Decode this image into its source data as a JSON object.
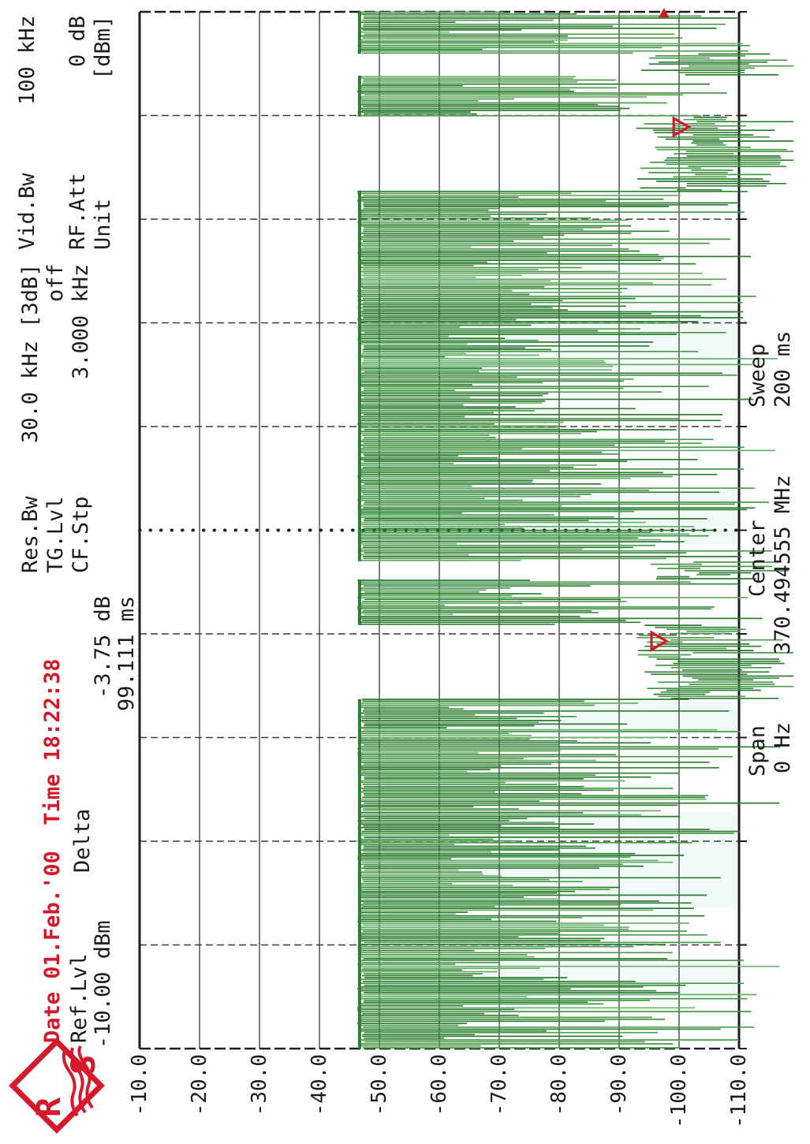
{
  "device": {
    "brand_logo": "rohde-schwarz",
    "date_line": "Date 01.Feb.'00  Time 18:22:38"
  },
  "header": {
    "ref_lvl_label": "Ref.Lvl",
    "ref_lvl_value": "-10.00 dBm",
    "delta_label": "Delta",
    "delta_db": "-3.75 dB",
    "delta_time": "99.111 ms",
    "res_bw_label": "Res.Bw",
    "res_bw_value": "30.0 kHz [3dB]",
    "tg_lvl_label": "TG.Lvl",
    "tg_lvl_value": "off",
    "cf_stp_label": "CF.Stp",
    "cf_stp_value": "3.000 kHz",
    "vid_bw_label": "Vid.Bw",
    "vid_bw_value": "100 kHz",
    "rf_att_label": "RF.Att",
    "rf_att_value": "0 dB",
    "unit_label": "Unit",
    "unit_value": "[dBm]"
  },
  "footer": {
    "span_label": "Span",
    "span_value": "0 Hz",
    "center_label": "Center",
    "center_value": "370.494555 MHz",
    "sweep_label": "Sweep",
    "sweep_value": "200 ms"
  },
  "colors": {
    "trace_green_dark": "#2e7d32",
    "trace_green_mid": "#4c9a4c",
    "trace_green_light": "#6db06d",
    "accent_red": "#d6182b",
    "grid": "#3a3a3a",
    "border": "#1d1d1d",
    "scan_tint_cyan": "#bfe8e2"
  },
  "chart_data": {
    "type": "line",
    "title": "Zero-span TDMA burst power vs time",
    "x_axis": {
      "label": "Sweep",
      "sweep_ms": 200,
      "span": "0 Hz",
      "center": "370.494555 MHz",
      "divisions": 10
    },
    "y_axis": {
      "unit": "dBm",
      "ref_level_db": -10.0,
      "db_per_div": 10,
      "divisions": 10,
      "tick_labels": [
        "-10.0",
        "-20.0",
        "-30.0",
        "-40.0",
        "-50.0",
        "-60.0",
        "-70.0",
        "-80.0",
        "-90.0",
        "-100.0",
        "-110.0"
      ]
    },
    "grid": {
      "on": true,
      "center_time_line_style": "dotted"
    },
    "burst_top_level_db": -46.3,
    "noise_floor_db": -103,
    "segments": [
      {
        "t0_ms": 0.0,
        "t1_ms": 67.4,
        "state": "on"
      },
      {
        "t0_ms": 67.4,
        "t1_ms": 81.7,
        "state": "off"
      },
      {
        "t0_ms": 81.7,
        "t1_ms": 90.5,
        "state": "on"
      },
      {
        "t0_ms": 90.5,
        "t1_ms": 94.0,
        "state": "off"
      },
      {
        "t0_ms": 94.0,
        "t1_ms": 165.5,
        "state": "on"
      },
      {
        "t0_ms": 165.5,
        "t1_ms": 179.8,
        "state": "off"
      },
      {
        "t0_ms": 179.8,
        "t1_ms": 187.7,
        "state": "on"
      },
      {
        "t0_ms": 187.7,
        "t1_ms": 191.9,
        "state": "off"
      },
      {
        "t0_ms": 191.9,
        "t1_ms": 200.0,
        "state": "on"
      }
    ],
    "markers": [
      {
        "name": "delta-reference-marker",
        "t_ms": 78.6,
        "level_db": -97.9,
        "shape": "open-triangle-down",
        "color": "#d6182b"
      },
      {
        "name": "delta-marker",
        "t_ms": 177.8,
        "level_db": -101.6,
        "shape": "open-triangle-down",
        "color": "#d6182b"
      }
    ],
    "readout": {
      "delta_level_db": "-3.75 dB",
      "delta_time": "99.111 ms"
    }
  }
}
